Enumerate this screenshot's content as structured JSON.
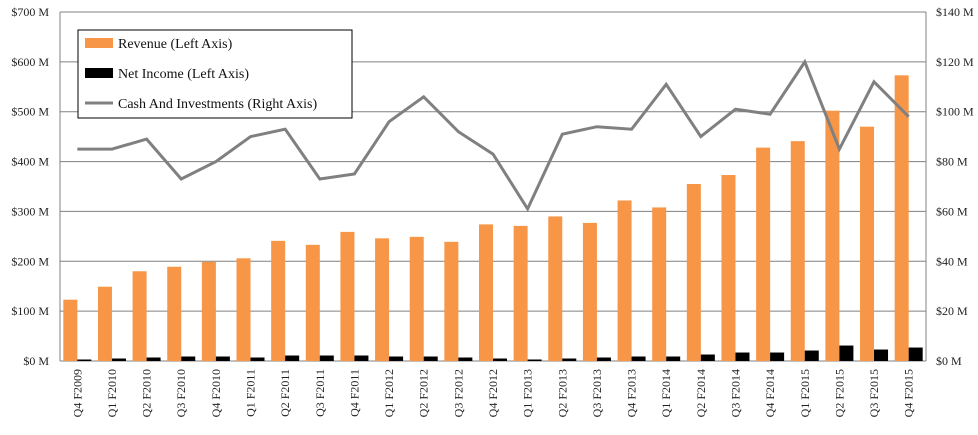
{
  "chart_data": {
    "type": "bar",
    "categories": [
      "Q4 F2009",
      "Q1 F2010",
      "Q2 F2010",
      "Q3 F2010",
      "Q4 F2010",
      "Q1 F2011",
      "Q2 F2011",
      "Q3 F2011",
      "Q4 F2011",
      "Q1 F2012",
      "Q2 F2012",
      "Q3 F2012",
      "Q4 F2012",
      "Q1 F2013",
      "Q2 F2013",
      "Q3 F2013",
      "Q4 F2013",
      "Q1 F2014",
      "Q2 F2014",
      "Q3 F2014",
      "Q4 F2014",
      "Q1 F2015",
      "Q2 F2015",
      "Q3 F2015",
      "Q4 F2015"
    ],
    "series": [
      {
        "name": "Revenue (Left Axis)",
        "kind": "bar",
        "axis": "left",
        "color": "#F79646",
        "values": [
          123,
          149,
          180,
          189,
          199,
          206,
          241,
          233,
          259,
          246,
          249,
          239,
          274,
          271,
          290,
          277,
          322,
          308,
          355,
          373,
          428,
          441,
          502,
          470,
          573
        ]
      },
      {
        "name": "Net Income (Left Axis)",
        "kind": "bar",
        "axis": "left",
        "color": "#000000",
        "values": [
          3,
          5,
          7,
          9,
          9,
          7,
          11,
          11,
          11,
          9,
          9,
          7,
          5,
          3,
          5,
          7,
          9,
          9,
          13,
          17,
          17,
          21,
          31,
          23,
          27
        ]
      },
      {
        "name": "Cash And Investments (Right Axis)",
        "kind": "line",
        "axis": "right",
        "color": "#808080",
        "values": [
          85,
          85,
          89,
          73,
          80,
          90,
          93,
          73,
          75,
          96,
          106,
          92,
          83,
          61,
          91,
          94,
          93,
          111,
          90,
          101,
          99,
          120,
          85,
          112,
          98
        ]
      }
    ],
    "left_axis": {
      "ylim": [
        0,
        700
      ],
      "ticks": [
        "$0 M",
        "$100 M",
        "$200 M",
        "$300 M",
        "$400 M",
        "$500 M",
        "$600 M",
        "$700 M"
      ]
    },
    "right_axis": {
      "ylim": [
        0,
        140
      ],
      "ticks": [
        "$0 M",
        "$20 M",
        "$40 M",
        "$60 M",
        "$80 M",
        "$100 M",
        "$120 M",
        "$140 M"
      ]
    },
    "grid": true,
    "legend_position": "top-left"
  }
}
